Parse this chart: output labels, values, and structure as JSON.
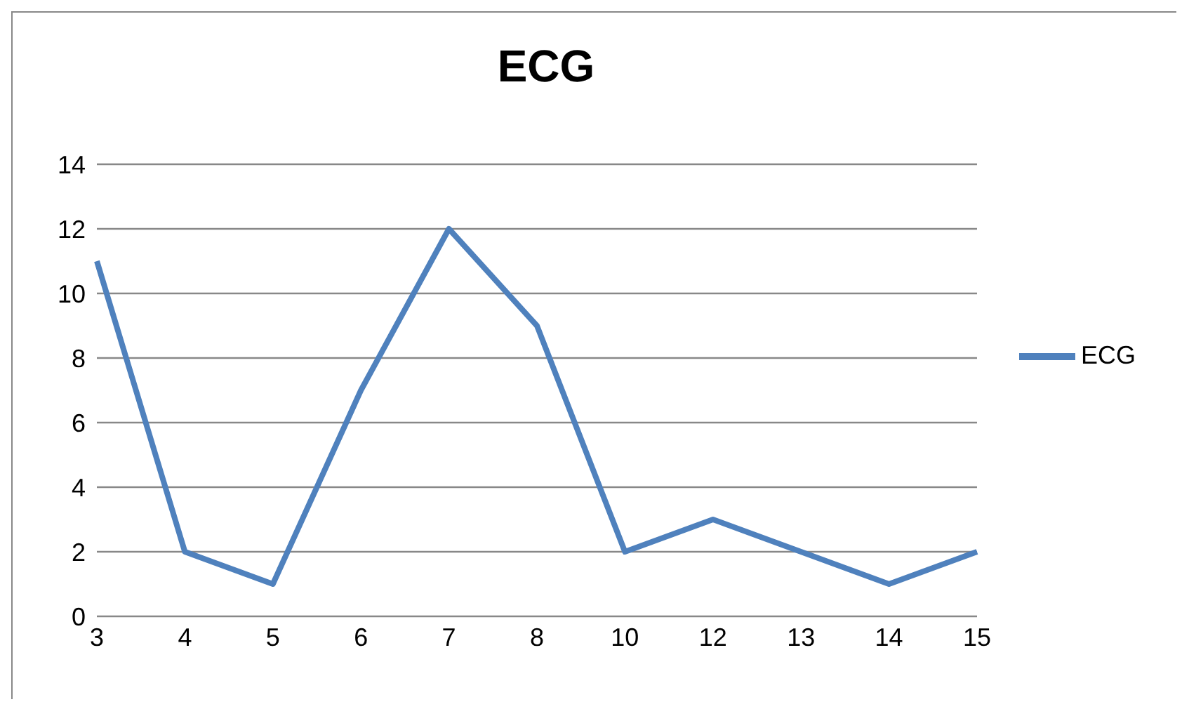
{
  "chart_data": {
    "type": "line",
    "title": "ECG",
    "categories": [
      "3",
      "4",
      "5",
      "6",
      "7",
      "8",
      "10",
      "12",
      "13",
      "14",
      "15"
    ],
    "series": [
      {
        "name": "ECG",
        "color": "#4f81bd",
        "values": [
          11,
          2,
          1,
          7,
          12,
          9,
          2,
          3,
          2,
          1,
          2
        ]
      }
    ],
    "ylim": [
      0,
      14
    ],
    "yticks": [
      0,
      2,
      4,
      6,
      8,
      10,
      12,
      14
    ],
    "grid": "y",
    "legend": "right",
    "marker": "none",
    "line_style": "solid"
  }
}
